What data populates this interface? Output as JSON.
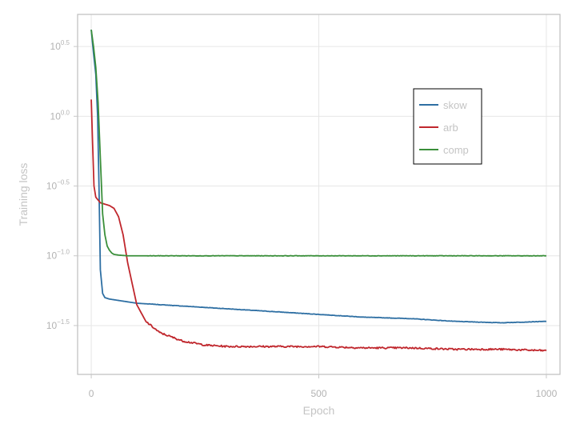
{
  "chart_data": {
    "type": "line",
    "xlabel": "Epoch",
    "ylabel": "Training loss",
    "xlim": [
      -30,
      1030
    ],
    "ylim": [
      -1.85,
      0.73
    ],
    "y_scale": "log10",
    "x_ticks": [
      0,
      500,
      1000
    ],
    "y_ticks": [
      {
        "exp": 0.5,
        "base": "10",
        "sup": "0.5"
      },
      {
        "exp": 0.0,
        "base": "10",
        "sup": "0.0"
      },
      {
        "exp": -0.5,
        "base": "10",
        "sup": "−0.5"
      },
      {
        "exp": -1.0,
        "base": "10",
        "sup": "−1.0"
      },
      {
        "exp": -1.5,
        "base": "10",
        "sup": "−1.5"
      }
    ],
    "grid": true,
    "legend_position": "right-upper",
    "series": [
      {
        "name": "skow",
        "color": "#2e6fa3",
        "x": [
          0,
          5,
          10,
          14,
          17,
          20,
          25,
          30,
          40,
          60,
          100,
          200,
          300,
          400,
          500,
          600,
          700,
          800,
          900,
          1000
        ],
        "y_log10": [
          0.62,
          0.45,
          0.3,
          0.0,
          -0.5,
          -1.1,
          -1.27,
          -1.3,
          -1.31,
          -1.32,
          -1.34,
          -1.36,
          -1.38,
          -1.4,
          -1.42,
          -1.44,
          -1.45,
          -1.47,
          -1.48,
          -1.47
        ]
      },
      {
        "name": "arb",
        "color": "#c0272d",
        "x": [
          0,
          3,
          6,
          10,
          20,
          30,
          40,
          50,
          60,
          70,
          80,
          90,
          100,
          120,
          150,
          200,
          250,
          300,
          400,
          500,
          600,
          700,
          800,
          900,
          1000
        ],
        "y_log10": [
          0.12,
          -0.2,
          -0.5,
          -0.58,
          -0.62,
          -0.63,
          -0.64,
          -0.66,
          -0.72,
          -0.85,
          -1.05,
          -1.2,
          -1.35,
          -1.47,
          -1.55,
          -1.61,
          -1.64,
          -1.65,
          -1.65,
          -1.65,
          -1.66,
          -1.66,
          -1.67,
          -1.67,
          -1.68
        ]
      },
      {
        "name": "comp",
        "color": "#3a8f3a",
        "x": [
          0,
          5,
          10,
          15,
          20,
          25,
          30,
          35,
          40,
          45,
          50,
          60,
          80,
          100,
          200,
          400,
          600,
          800,
          1000
        ],
        "y_log10": [
          0.62,
          0.5,
          0.35,
          0.1,
          -0.3,
          -0.7,
          -0.85,
          -0.93,
          -0.96,
          -0.98,
          -0.99,
          -0.995,
          -1.0,
          -1.0,
          -1.0,
          -1.0,
          -1.0,
          -1.0,
          -1.0
        ]
      }
    ]
  }
}
